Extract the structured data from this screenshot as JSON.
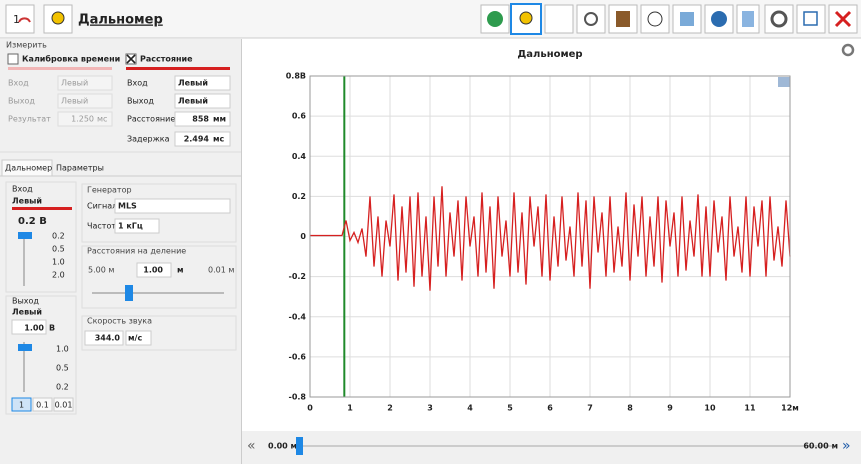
{
  "toolbar": {
    "app_icon_text": "1",
    "title": "Дальномер"
  },
  "measure": {
    "title": "Измерить",
    "calibration": {
      "label": "Калибровка времени",
      "checked": false,
      "input_label": "Вход",
      "input": "Левый",
      "output_label": "Выход",
      "output": "Левый",
      "result_label": "Результат",
      "result": "1.250",
      "result_unit": "мс"
    },
    "distance": {
      "label": "Расстояние",
      "checked": true,
      "input_label": "Вход",
      "input": "Левый",
      "output_label": "Выход",
      "output": "Левый",
      "distance_label": "Расстояние",
      "distance": "858",
      "distance_unit": "мм",
      "delay_label": "Задержка",
      "delay": "2.494",
      "delay_unit": "мс"
    }
  },
  "tabs": [
    "Дальномер",
    "Параметры"
  ],
  "input_group": {
    "title": "Вход",
    "channel": "Левый",
    "level": "0.2 В",
    "scale": [
      "0.2",
      "0.5",
      "1.0",
      "2.0"
    ]
  },
  "output_group": {
    "title": "Выход",
    "channel": "Левый",
    "level": "1.00",
    "level_unit": "В",
    "scale": [
      "1.0",
      "0.5",
      "0.2"
    ],
    "steps": [
      "1",
      "0.1",
      "0.01"
    ]
  },
  "generator": {
    "title": "Генератор",
    "signal_label": "Сигнал",
    "signal": "MLS",
    "freq_label": "Частота",
    "freq": "1 кГц"
  },
  "division": {
    "title": "Расстояния на деление",
    "min": "5.00 м",
    "value": "1.00",
    "unit": "м",
    "max": "0.01 м"
  },
  "sound": {
    "title": "Скорость звука",
    "value": "344.0",
    "unit": "м/с"
  },
  "chart_data": {
    "type": "line",
    "title": "Дальномер",
    "color": "#d62020",
    "grid": true,
    "xlim": [
      0,
      12
    ],
    "xticks": [
      0,
      1,
      2,
      3,
      4,
      5,
      6,
      7,
      8,
      9,
      10,
      11,
      {
        "value": 12,
        "label": "12м"
      }
    ],
    "ylim": [
      -0.8,
      0.8
    ],
    "yticks": [
      {
        "value": 0.8,
        "label": "0.8В"
      },
      0.6,
      0.4,
      0.2,
      0,
      -0.2,
      -0.4,
      -0.6,
      -0.8
    ],
    "marker": {
      "x": 0.858,
      "color": "#1f8a2a"
    },
    "x": [
      0,
      0.1,
      0.2,
      0.3,
      0.4,
      0.5,
      0.6,
      0.7,
      0.8,
      0.9,
      1,
      1.1,
      1.2,
      1.3,
      1.4,
      1.5,
      1.6,
      1.7,
      1.8,
      1.9,
      2,
      2.1,
      2.2,
      2.3,
      2.4,
      2.5,
      2.6,
      2.7,
      2.8,
      2.9,
      3,
      3.1,
      3.2,
      3.3,
      3.4,
      3.5,
      3.6,
      3.7,
      3.8,
      3.9,
      4,
      4.1,
      4.2,
      4.3,
      4.4,
      4.5,
      4.6,
      4.7,
      4.8,
      4.9,
      5,
      5.1,
      5.2,
      5.3,
      5.4,
      5.5,
      5.6,
      5.7,
      5.8,
      5.9,
      6,
      6.1,
      6.2,
      6.3,
      6.4,
      6.5,
      6.6,
      6.7,
      6.8,
      6.9,
      7,
      7.1,
      7.2,
      7.3,
      7.4,
      7.5,
      7.6,
      7.7,
      7.8,
      7.9,
      8,
      8.1,
      8.2,
      8.3,
      8.4,
      8.5,
      8.6,
      8.7,
      8.8,
      8.9,
      9,
      9.1,
      9.2,
      9.3,
      9.4,
      9.5,
      9.6,
      9.7,
      9.8,
      9.9,
      10,
      10.1,
      10.2,
      10.3,
      10.4,
      10.5,
      10.6,
      10.7,
      10.8,
      10.9,
      11,
      11.1,
      11.2,
      11.3,
      11.4,
      11.5,
      11.6,
      11.7,
      11.8,
      11.9,
      12
    ],
    "values": [
      0.005,
      0.005,
      0.005,
      0.005,
      0.005,
      0.005,
      0.005,
      0.005,
      0.005,
      0.08,
      -0.02,
      0.02,
      -0.03,
      0.04,
      -0.1,
      0.2,
      -0.15,
      0.1,
      -0.2,
      0.08,
      -0.05,
      0.21,
      -0.22,
      0.15,
      -0.18,
      0.2,
      -0.25,
      0.22,
      -0.2,
      0.1,
      -0.27,
      0.2,
      -0.15,
      0.25,
      -0.2,
      0.12,
      -0.1,
      0.18,
      -0.22,
      0.2,
      -0.05,
      0.1,
      -0.2,
      0.22,
      -0.18,
      0.15,
      -0.26,
      0.2,
      -0.1,
      0.08,
      -0.2,
      0.22,
      -0.18,
      0.12,
      -0.24,
      0.2,
      -0.05,
      0.15,
      -0.2,
      0.21,
      -0.22,
      0.1,
      -0.15,
      0.2,
      -0.12,
      0.05,
      -0.2,
      0.22,
      -0.15,
      0.18,
      -0.26,
      0.2,
      -0.08,
      0.12,
      -0.2,
      0.2,
      -0.18,
      0.05,
      -0.15,
      0.22,
      -0.22,
      0.16,
      -0.1,
      0.2,
      -0.2,
      0.1,
      -0.15,
      0.2,
      -0.23,
      0.18,
      -0.05,
      0.12,
      -0.2,
      0.2,
      -0.17,
      0.08,
      -0.1,
      0.21,
      -0.2,
      0.15,
      -0.2,
      0.18,
      -0.08,
      0.1,
      -0.22,
      0.2,
      -0.1,
      0.05,
      -0.18,
      0.2,
      -0.2,
      0.15,
      -0.05,
      0.18,
      -0.2,
      0.2,
      -0.12,
      0.05,
      -0.15,
      0.18,
      -0.1
    ]
  },
  "scroll": {
    "start": "0.00 м",
    "end": "60.00 м"
  }
}
